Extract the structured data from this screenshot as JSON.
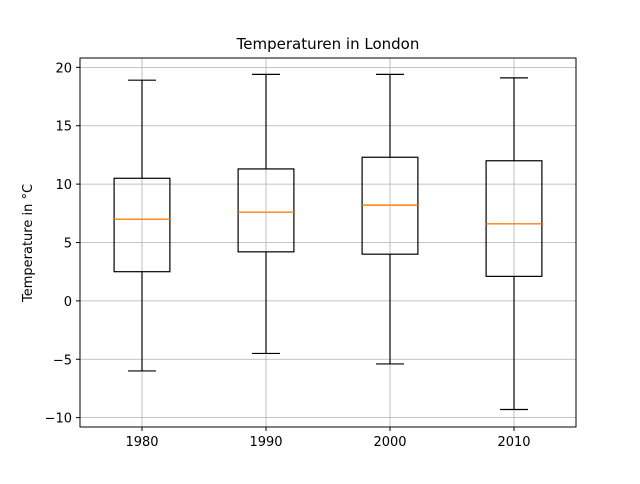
{
  "chart_data": {
    "type": "box",
    "title": "Temperaturen in London",
    "xlabel": "",
    "ylabel": "Temperature in °C",
    "categories": [
      "1980",
      "1990",
      "2000",
      "2010"
    ],
    "boxes": [
      {
        "category": "1980",
        "whisker_low": -6.0,
        "q1": 2.5,
        "median": 7.0,
        "q3": 10.5,
        "whisker_high": 18.9
      },
      {
        "category": "1990",
        "whisker_low": -4.5,
        "q1": 4.2,
        "median": 7.6,
        "q3": 11.3,
        "whisker_high": 19.4
      },
      {
        "category": "2000",
        "whisker_low": -5.4,
        "q1": 4.0,
        "median": 8.2,
        "q3": 12.3,
        "whisker_high": 19.4
      },
      {
        "category": "2010",
        "whisker_low": -9.3,
        "q1": 2.1,
        "median": 6.6,
        "q3": 12.0,
        "whisker_high": 19.1
      }
    ],
    "ylim": [
      -10.8,
      20.8
    ],
    "yticks": [
      -10,
      -5,
      0,
      5,
      10,
      15,
      20
    ],
    "grid": true,
    "colors": {
      "box": "#000000",
      "median": "#ff7f0e",
      "grid": "#b0b0b0"
    }
  }
}
